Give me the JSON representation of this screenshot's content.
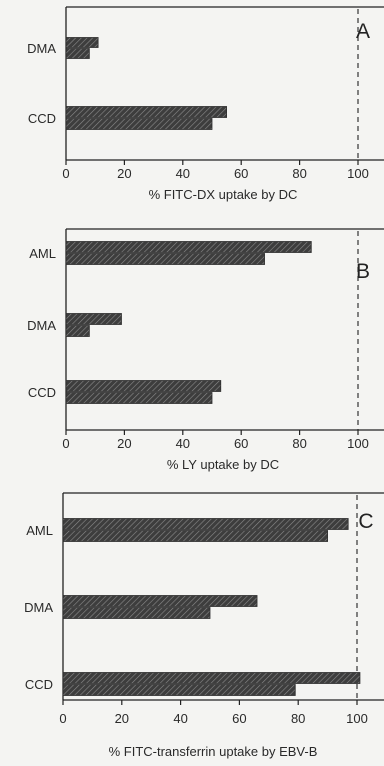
{
  "chart_data": [
    {
      "type": "bar",
      "orientation": "horizontal",
      "panel_label": "A",
      "categories": [
        "DMA",
        "CCD"
      ],
      "series": [
        {
          "values": [
            11,
            55
          ]
        },
        {
          "values": [
            8,
            50
          ]
        }
      ],
      "xlabel": "% FITC-DX uptake by DC",
      "xlim": [
        0,
        100
      ],
      "xticks": [
        0,
        20,
        40,
        60,
        80,
        100
      ],
      "reference_line": 100
    },
    {
      "type": "bar",
      "orientation": "horizontal",
      "panel_label": "B",
      "categories": [
        "AML",
        "DMA",
        "CCD"
      ],
      "series": [
        {
          "values": [
            84,
            19,
            53
          ]
        },
        {
          "values": [
            68,
            8,
            50
          ]
        }
      ],
      "xlabel": "% LY uptake by DC",
      "xlim": [
        0,
        100
      ],
      "xticks": [
        0,
        20,
        40,
        60,
        80,
        100
      ],
      "reference_line": 100
    },
    {
      "type": "bar",
      "orientation": "horizontal",
      "panel_label": "C",
      "categories": [
        "AML",
        "DMA",
        "CCD"
      ],
      "series": [
        {
          "values": [
            97,
            66,
            101
          ]
        },
        {
          "values": [
            90,
            50,
            79
          ]
        }
      ],
      "xlabel": "% FITC-transferrin uptake by EBV-B",
      "xlim": [
        0,
        100
      ],
      "xticks": [
        0,
        20,
        40,
        60,
        80,
        100
      ],
      "reference_line": 100
    }
  ],
  "colors": {
    "background": "#f4f4f2",
    "bar_fill": "#3d3d3d",
    "hatch": "#8a8a8a",
    "axis": "#222222"
  }
}
